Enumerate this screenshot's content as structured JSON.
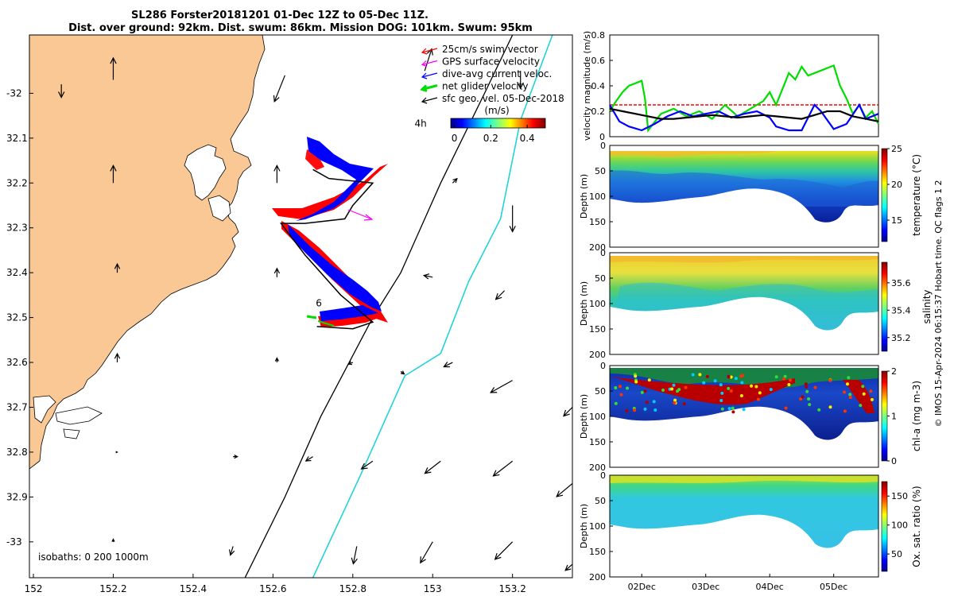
{
  "title": {
    "line1": "SL286 Forster20181201 01-Dec 12Z to 05-Dec 11Z.",
    "line2": "Dist. over ground: 92km. Dist. swum: 86km. Mission DOG: 101km. Swum: 95km"
  },
  "credit": "© IMOS 15-Apr-2024 06:15:37 Hobart time. QC flags 1  2",
  "colors": {
    "land": "#f9c894",
    "swim_vector": "#ff0000",
    "gps_velocity": "#ff00ff",
    "dive_avg": "#0000ff",
    "net_glider": "#00dd00",
    "geo_vel": "#000000",
    "isobath_200": "#000000",
    "isobath_1000": "#22d3d8"
  },
  "chart_data": [
    {
      "type": "map",
      "name": "track-map",
      "xlim": [
        151.99,
        153.35
      ],
      "ylim": [
        -33.08,
        -31.87
      ],
      "xticks": [
        "152",
        "152.2",
        "152.4",
        "152.6",
        "152.8",
        "153",
        "153.2"
      ],
      "xtick_values": [
        152,
        152.2,
        152.4,
        152.6,
        152.8,
        153,
        153.2
      ],
      "yticks": [
        "-32",
        "32.1",
        "32.2",
        "32.3",
        "32.4",
        "32.5",
        "32.6",
        "32.7",
        "32.8",
        "32.9",
        "-33"
      ],
      "ytick_values": [
        -32,
        -32.1,
        -32.2,
        -32.3,
        -32.4,
        -32.5,
        -32.6,
        -32.7,
        -32.8,
        -32.9,
        -33
      ],
      "legend": [
        {
          "label": "25cm/s swim vector",
          "color": "#ff0000"
        },
        {
          "label": "GPS surface velocity",
          "color": "#ff00ff"
        },
        {
          "label": "dive-avg current veloc.",
          "color": "#0000ff"
        },
        {
          "label": "net glider velocity",
          "color": "#00dd00"
        },
        {
          "label": "sfc geo. vel. 05-Dec-2018",
          "color": "#000000"
        }
      ],
      "legend_position": "top-right",
      "colorbar": {
        "label": "(m/s)",
        "ticks": [
          "0",
          "0.2",
          "0.4"
        ],
        "tick_values": [
          0,
          0.2,
          0.4
        ],
        "range": [
          -0.02,
          0.5
        ]
      },
      "annotations": [
        {
          "text": "4h",
          "lon": 152.97,
          "lat": -32.075
        },
        {
          "text": "6",
          "lon": 152.715,
          "lat": -32.475
        }
      ],
      "isobaths_label": "isobaths: 0   200  1000m",
      "isobath_200": [
        [
          152.53,
          -33.08
        ],
        [
          152.63,
          -32.9
        ],
        [
          152.72,
          -32.72
        ],
        [
          152.85,
          -32.5
        ],
        [
          152.92,
          -32.4
        ],
        [
          153.02,
          -32.2
        ],
        [
          153.13,
          -32.0
        ],
        [
          153.2,
          -31.87
        ]
      ],
      "isobath_1000": [
        [
          152.7,
          -33.08
        ],
        [
          152.82,
          -32.85
        ],
        [
          152.93,
          -32.63
        ],
        [
          153.02,
          -32.58
        ],
        [
          153.09,
          -32.42
        ],
        [
          153.17,
          -32.28
        ],
        [
          153.22,
          -32.06
        ],
        [
          153.3,
          -31.87
        ]
      ],
      "track": [
        [
          152.7,
          -32.17
        ],
        [
          152.74,
          -32.19
        ],
        [
          152.85,
          -32.2
        ],
        [
          152.8,
          -32.25
        ],
        [
          152.78,
          -32.28
        ],
        [
          152.68,
          -32.29
        ],
        [
          152.62,
          -32.29
        ],
        [
          152.68,
          -32.36
        ],
        [
          152.77,
          -32.45
        ],
        [
          152.85,
          -32.51
        ],
        [
          152.8,
          -32.525
        ],
        [
          152.71,
          -32.52
        ]
      ],
      "geo_vectors": [
        {
          "lon": 152.07,
          "lat": -31.98,
          "u": 0.0,
          "v": -0.15
        },
        {
          "lon": 152.2,
          "lat": -31.97,
          "u": 0.0,
          "v": 0.25
        },
        {
          "lon": 152.63,
          "lat": -31.96,
          "u": -0.12,
          "v": -0.3
        },
        {
          "lon": 152.98,
          "lat": -31.95,
          "u": 0.08,
          "v": 0.25
        },
        {
          "lon": 153.22,
          "lat": -31.95,
          "u": 0.0,
          "v": -0.2
        },
        {
          "lon": 152.2,
          "lat": -32.2,
          "u": 0.0,
          "v": 0.2
        },
        {
          "lon": 152.61,
          "lat": -32.2,
          "u": 0.0,
          "v": 0.2
        },
        {
          "lon": 153.05,
          "lat": -32.2,
          "u": 0.05,
          "v": 0.05
        },
        {
          "lon": 153.2,
          "lat": -32.25,
          "u": 0.0,
          "v": -0.3
        },
        {
          "lon": 152.21,
          "lat": -32.4,
          "u": 0.0,
          "v": 0.1
        },
        {
          "lon": 152.61,
          "lat": -32.41,
          "u": 0.0,
          "v": 0.1
        },
        {
          "lon": 153.0,
          "lat": -32.41,
          "u": -0.1,
          "v": 0.02
        },
        {
          "lon": 153.18,
          "lat": -32.44,
          "u": -0.1,
          "v": -0.1
        },
        {
          "lon": 152.21,
          "lat": -32.6,
          "u": 0.0,
          "v": 0.1
        },
        {
          "lon": 152.61,
          "lat": -32.6,
          "u": 0.0,
          "v": 0.05
        },
        {
          "lon": 152.8,
          "lat": -32.6,
          "u": -0.05,
          "v": -0.02
        },
        {
          "lon": 152.92,
          "lat": -32.62,
          "u": 0.04,
          "v": -0.03
        },
        {
          "lon": 153.05,
          "lat": -32.6,
          "u": -0.1,
          "v": -0.05
        },
        {
          "lon": 153.2,
          "lat": -32.64,
          "u": -0.25,
          "v": -0.14
        },
        {
          "lon": 153.35,
          "lat": -32.7,
          "u": -0.1,
          "v": -0.1
        },
        {
          "lon": 152.21,
          "lat": -32.8,
          "u": 0.0,
          "v": 0.0
        },
        {
          "lon": 152.5,
          "lat": -32.81,
          "u": 0.05,
          "v": 0.0
        },
        {
          "lon": 152.7,
          "lat": -32.81,
          "u": -0.08,
          "v": -0.05
        },
        {
          "lon": 152.85,
          "lat": -32.82,
          "u": -0.13,
          "v": -0.09
        },
        {
          "lon": 153.02,
          "lat": -32.82,
          "u": -0.18,
          "v": -0.14
        },
        {
          "lon": 153.2,
          "lat": -32.82,
          "u": -0.22,
          "v": -0.17
        },
        {
          "lon": 153.35,
          "lat": -32.87,
          "u": -0.18,
          "v": -0.15
        },
        {
          "lon": 152.2,
          "lat": -33.0,
          "u": 0.0,
          "v": 0.03
        },
        {
          "lon": 152.5,
          "lat": -33.01,
          "u": -0.03,
          "v": -0.1
        },
        {
          "lon": 152.81,
          "lat": -33.01,
          "u": -0.04,
          "v": -0.2
        },
        {
          "lon": 153.0,
          "lat": -33.0,
          "u": -0.14,
          "v": -0.24
        },
        {
          "lon": 153.2,
          "lat": -33.0,
          "u": -0.2,
          "v": -0.2
        },
        {
          "lon": 153.35,
          "lat": -33.05,
          "u": -0.08,
          "v": -0.07
        }
      ]
    },
    {
      "type": "line",
      "name": "velocity-magnitude",
      "ylabel": "velocity magnitude (m/s)",
      "ylim": [
        0,
        0.8
      ],
      "yticks": [
        "0",
        "0.2",
        "0.4",
        "0.6",
        "0.8"
      ],
      "ytick_values": [
        0,
        0.2,
        0.4,
        0.6,
        0.8
      ],
      "xlim": [
        0,
        4.2
      ],
      "series": [
        {
          "color": "#ff0000",
          "dashed": true,
          "x": [
            0,
            4.2
          ],
          "y": [
            0.25,
            0.25
          ]
        },
        {
          "color": "#00dd00",
          "x": [
            0,
            0.1,
            0.2,
            0.3,
            0.4,
            0.5,
            0.55,
            0.6,
            0.8,
            1.0,
            1.2,
            1.4,
            1.6,
            1.8,
            2.0,
            2.2,
            2.4,
            2.5,
            2.6,
            2.8,
            2.9,
            3.0,
            3.1,
            3.3,
            3.5,
            3.6,
            3.7,
            3.8,
            3.9,
            4.0,
            4.1,
            4.2
          ],
          "y": [
            0.2,
            0.28,
            0.35,
            0.4,
            0.42,
            0.44,
            0.3,
            0.05,
            0.18,
            0.22,
            0.16,
            0.2,
            0.14,
            0.25,
            0.16,
            0.22,
            0.28,
            0.35,
            0.25,
            0.5,
            0.45,
            0.55,
            0.48,
            0.52,
            0.56,
            0.4,
            0.3,
            0.18,
            0.25,
            0.15,
            0.2,
            0.1
          ]
        },
        {
          "color": "#0000ff",
          "x": [
            0,
            0.15,
            0.3,
            0.5,
            0.7,
            0.9,
            1.1,
            1.3,
            1.5,
            1.7,
            1.9,
            2.1,
            2.3,
            2.5,
            2.6,
            2.8,
            3.0,
            3.2,
            3.3,
            3.5,
            3.7,
            3.9,
            4.0,
            4.2
          ],
          "y": [
            0.25,
            0.12,
            0.08,
            0.05,
            0.1,
            0.16,
            0.2,
            0.16,
            0.18,
            0.2,
            0.15,
            0.18,
            0.2,
            0.15,
            0.08,
            0.05,
            0.05,
            0.25,
            0.2,
            0.06,
            0.1,
            0.25,
            0.14,
            0.18
          ]
        },
        {
          "color": "#000000",
          "x": [
            0,
            0.2,
            0.4,
            0.6,
            0.8,
            1.0,
            1.2,
            1.4,
            1.6,
            1.8,
            2.0,
            2.2,
            2.4,
            2.6,
            2.8,
            3.0,
            3.2,
            3.4,
            3.6,
            3.8,
            4.0,
            4.2
          ],
          "y": [
            0.22,
            0.2,
            0.18,
            0.16,
            0.14,
            0.14,
            0.15,
            0.16,
            0.17,
            0.16,
            0.15,
            0.16,
            0.17,
            0.16,
            0.15,
            0.14,
            0.17,
            0.2,
            0.2,
            0.16,
            0.14,
            0.12
          ]
        }
      ]
    },
    {
      "type": "heatmap",
      "name": "temperature-section",
      "ylabel": "Depth (m)",
      "cblabel": "temperature (°C)",
      "yticks": [
        "0",
        "50",
        "100",
        "150",
        "200"
      ],
      "ytick_values": [
        0,
        50,
        100,
        150,
        200
      ],
      "cbticks": [
        "25",
        "20",
        "15"
      ],
      "cbtick_values": [
        25,
        20,
        15
      ],
      "crange": [
        12,
        25
      ]
    },
    {
      "type": "heatmap",
      "name": "salinity-section",
      "ylabel": "Depth (m)",
      "cblabel": "salinity",
      "yticks": [
        "0",
        "50",
        "100",
        "150",
        "200"
      ],
      "ytick_values": [
        0,
        50,
        100,
        150,
        200
      ],
      "cbticks": [
        "35.6",
        "35.4",
        "35.2"
      ],
      "cbtick_values": [
        35.6,
        35.4,
        35.2
      ],
      "crange": [
        35.1,
        35.75
      ]
    },
    {
      "type": "heatmap",
      "name": "chla-section",
      "ylabel": "Depth (m)",
      "cblabel": "chl-a (mg m-3)",
      "yticks": [
        "0",
        "50",
        "100",
        "150",
        "200"
      ],
      "ytick_values": [
        0,
        50,
        100,
        150,
        200
      ],
      "cbticks": [
        "2",
        "1",
        "0"
      ],
      "cbtick_values": [
        2,
        1,
        0
      ],
      "crange": [
        0,
        2
      ]
    },
    {
      "type": "heatmap",
      "name": "oxygen-section",
      "ylabel": "Depth (m)",
      "cblabel": "Ox. sat. ratio (%)",
      "yticks": [
        "0",
        "50",
        "100",
        "150",
        "200"
      ],
      "ytick_values": [
        0,
        50,
        100,
        150,
        200
      ],
      "cbticks": [
        "150",
        "100",
        "50"
      ],
      "cbtick_values": [
        150,
        100,
        50
      ],
      "crange": [
        20,
        175
      ],
      "xticks": [
        "02Dec",
        "03Dec",
        "04Dec",
        "05Dec"
      ],
      "xtick_values": [
        0.5,
        1.5,
        2.5,
        3.5
      ]
    }
  ]
}
